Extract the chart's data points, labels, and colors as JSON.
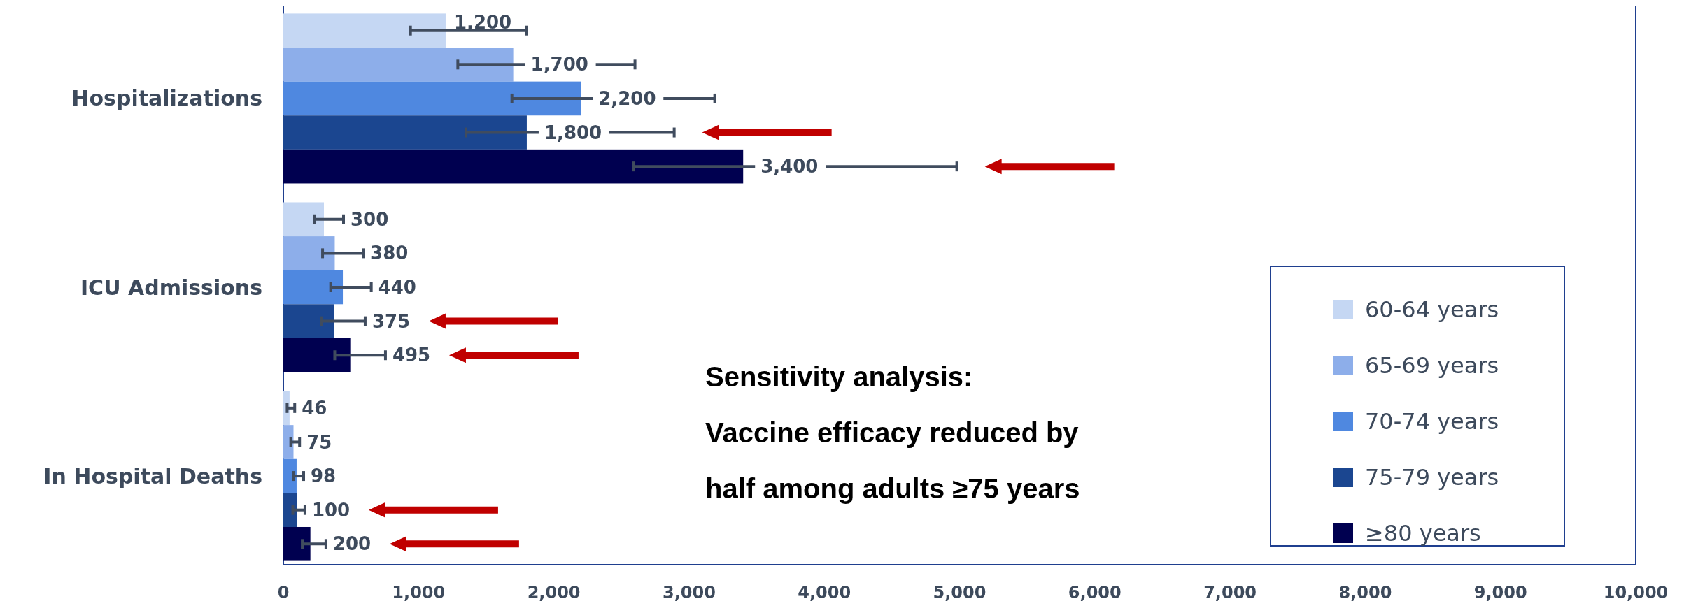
{
  "chart_data": {
    "type": "bar",
    "orientation": "horizontal",
    "categories": [
      "Hospitalizations",
      "ICU Admissions",
      "In Hospital Deaths"
    ],
    "series": [
      {
        "name": "60-64 years",
        "color": "#c5d7f3",
        "values": [
          1200,
          300,
          46
        ],
        "value_labels": [
          "1,200",
          "300",
          "46"
        ],
        "errors": [
          [
            940,
            1800
          ],
          [
            230,
            445
          ],
          [
            28,
            84
          ]
        ]
      },
      {
        "name": "65-69 years",
        "color": "#8daeea",
        "values": [
          1700,
          380,
          75
        ],
        "value_labels": [
          "1,700",
          "380",
          "75"
        ],
        "errors": [
          [
            1290,
            2600
          ],
          [
            290,
            590
          ],
          [
            55,
            120
          ]
        ]
      },
      {
        "name": "70-74 years",
        "color": "#4f88e0",
        "values": [
          2200,
          440,
          98
        ],
        "value_labels": [
          "2,200",
          "440",
          "98"
        ],
        "errors": [
          [
            1690,
            3190
          ],
          [
            350,
            650
          ],
          [
            75,
            150
          ]
        ]
      },
      {
        "name": "75-79 years",
        "color": "#1b4690",
        "values": [
          1800,
          375,
          100
        ],
        "value_labels": [
          "1,800",
          "375",
          "100"
        ],
        "errors": [
          [
            1350,
            2890
          ],
          [
            280,
            605
          ],
          [
            70,
            160
          ]
        ]
      },
      {
        "name": "≥80 years",
        "color": "#000050",
        "values": [
          3400,
          495,
          200
        ],
        "value_labels": [
          "3,400",
          "495",
          "200"
        ],
        "errors": [
          [
            2590,
            4980
          ],
          [
            380,
            755
          ],
          [
            140,
            315
          ]
        ]
      }
    ],
    "xlim": [
      0,
      10000
    ],
    "xticks": [
      0,
      {
        "value": 1000,
        "label": "1,000"
      },
      {
        "value": 2000,
        "label": "2,000"
      },
      {
        "value": 3000,
        "label": "3,000"
      },
      {
        "value": 4000,
        "label": "4,000"
      },
      {
        "value": 5000,
        "label": "5,000"
      },
      {
        "value": 6000,
        "label": "6,000"
      },
      {
        "value": 7000,
        "label": "7,000"
      },
      {
        "value": 8000,
        "label": "8,000"
      },
      {
        "value": 9000,
        "label": "9,000"
      },
      {
        "value": 10000,
        "label": "10,000"
      }
    ],
    "grid": false,
    "legend": "bottom right",
    "annotations": [
      "Sensitivity analysis:\nVaccine efficacy reduced by\nhalf among adults ≥75 years"
    ]
  }
}
